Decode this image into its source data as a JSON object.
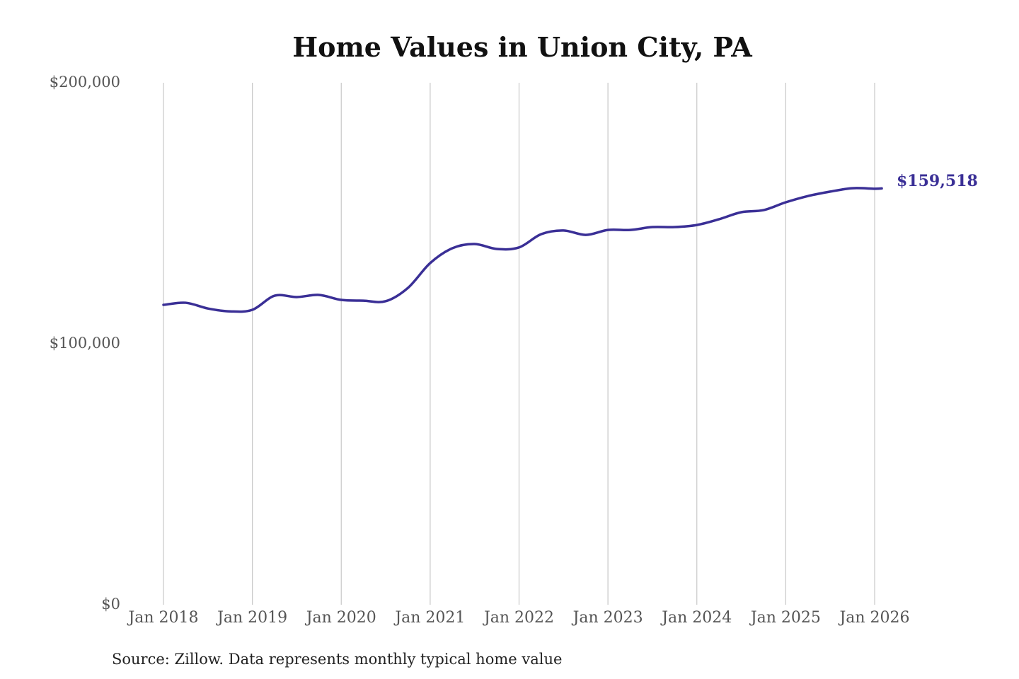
{
  "chart_data": {
    "type": "line",
    "title": "Home Values in Union City, PA",
    "source": "Source: Zillow. Data represents monthly typical home value",
    "xlabel": "",
    "ylabel": "",
    "ylim": [
      0,
      200000
    ],
    "y_ticks": [
      0,
      100000,
      200000
    ],
    "y_tick_labels": [
      "$0",
      "$100,000",
      "$200,000"
    ],
    "x_tick_labels": [
      "Jan 2018",
      "Jan 2019",
      "Jan 2020",
      "Jan 2021",
      "Jan 2022",
      "Jan 2023",
      "Jan 2024",
      "Jan 2025",
      "Jan 2026"
    ],
    "x_tick_years": [
      2018,
      2019,
      2020,
      2021,
      2022,
      2023,
      2024,
      2025,
      2026
    ],
    "xlim": [
      2018,
      2026
    ],
    "grid": "vertical",
    "line_color": "#3a2f96",
    "end_label": "$159,518",
    "series": [
      {
        "name": "Typical home value",
        "x": [
          2018.0,
          2018.25,
          2018.5,
          2018.75,
          2019.0,
          2019.25,
          2019.5,
          2019.75,
          2020.0,
          2020.25,
          2020.5,
          2020.75,
          2021.0,
          2021.25,
          2021.5,
          2021.75,
          2022.0,
          2022.25,
          2022.5,
          2022.75,
          2023.0,
          2023.25,
          2023.5,
          2023.75,
          2024.0,
          2024.25,
          2024.5,
          2024.75,
          2025.0,
          2025.25,
          2025.5,
          2025.75,
          2026.0,
          2026.08
        ],
        "values": [
          114900,
          115700,
          113500,
          112400,
          113000,
          118400,
          117900,
          118700,
          116800,
          116500,
          116300,
          121400,
          130900,
          136600,
          138200,
          136300,
          136900,
          142000,
          143400,
          141700,
          143600,
          143600,
          144700,
          144700,
          145500,
          147700,
          150400,
          151200,
          154200,
          156600,
          158300,
          159600,
          159400,
          159518
        ]
      }
    ]
  }
}
